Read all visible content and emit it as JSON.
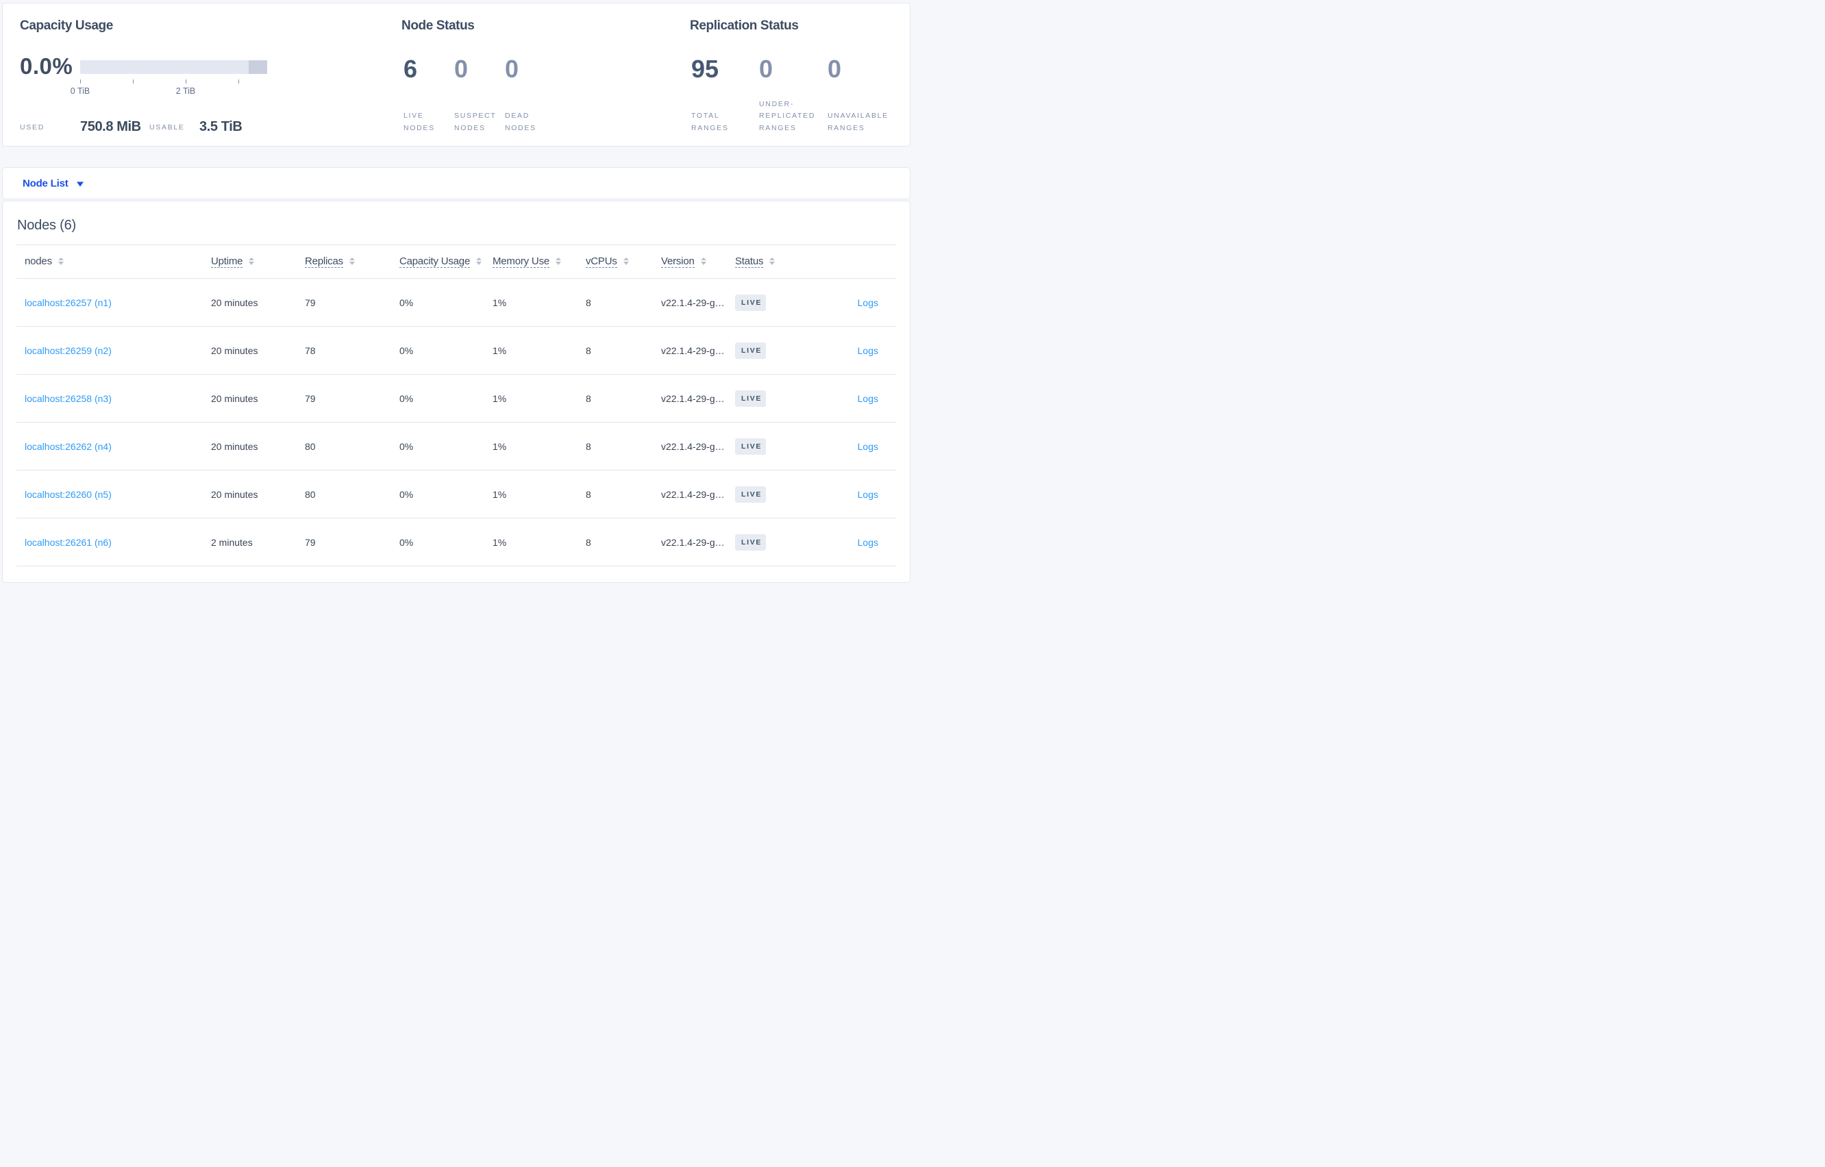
{
  "colors": {
    "page_background": "#f5f7fa",
    "card_background": "#ffffff",
    "heading_text": "#3e4c63",
    "primary_blue": "#1b4fe8",
    "link_blue": "#2e9bf7",
    "muted_label": "#8290a9",
    "bar_light": "#e3e7f1",
    "bar_dark": "#c9cfdf",
    "badge_background": "#e4e9f1"
  },
  "capacity_panel": {
    "title": "Capacity Usage",
    "percent": "0.0%",
    "tick_label_0": "0 TiB",
    "tick_label_2": "2 TiB",
    "used_label": "USED",
    "used_value": "750.8 MiB",
    "usable_label": "USABLE",
    "usable_value": "3.5 TiB"
  },
  "node_status_panel": {
    "title": "Node Status",
    "stats": [
      {
        "value": "6",
        "label": "LIVE\nNODES",
        "muted": false
      },
      {
        "value": "0",
        "label": "SUSPECT\nNODES",
        "muted": true
      },
      {
        "value": "0",
        "label": "DEAD\nNODES",
        "muted": true
      }
    ]
  },
  "replication_panel": {
    "title": "Replication Status",
    "stats": [
      {
        "value": "95",
        "label": "TOTAL\nRANGES",
        "muted": false
      },
      {
        "value": "0",
        "label": "UNDER-\nREPLICATED\nRANGES",
        "muted": true
      },
      {
        "value": "0",
        "label": "UNAVAILABLE\nRANGES",
        "muted": true
      }
    ]
  },
  "node_list_dropdown": {
    "label": "Node List"
  },
  "nodes_table": {
    "title": "Nodes (6)",
    "columns": [
      {
        "label": "nodes",
        "dashed": false
      },
      {
        "label": "Uptime",
        "dashed": true
      },
      {
        "label": "Replicas",
        "dashed": true
      },
      {
        "label": "Capacity Usage",
        "dashed": true
      },
      {
        "label": "Memory Use",
        "dashed": true
      },
      {
        "label": "vCPUs",
        "dashed": true
      },
      {
        "label": "Version",
        "dashed": true
      },
      {
        "label": "Status",
        "dashed": true
      }
    ],
    "rows": [
      {
        "node": "localhost:26257 (n1)",
        "uptime": "20 minutes",
        "replicas": "79",
        "capacity": "0%",
        "memory": "1%",
        "vcpus": "8",
        "version": "v22.1.4-29-g…",
        "status": "LIVE",
        "logs": "Logs"
      },
      {
        "node": "localhost:26259 (n2)",
        "uptime": "20 minutes",
        "replicas": "78",
        "capacity": "0%",
        "memory": "1%",
        "vcpus": "8",
        "version": "v22.1.4-29-g…",
        "status": "LIVE",
        "logs": "Logs"
      },
      {
        "node": "localhost:26258 (n3)",
        "uptime": "20 minutes",
        "replicas": "79",
        "capacity": "0%",
        "memory": "1%",
        "vcpus": "8",
        "version": "v22.1.4-29-g…",
        "status": "LIVE",
        "logs": "Logs"
      },
      {
        "node": "localhost:26262 (n4)",
        "uptime": "20 minutes",
        "replicas": "80",
        "capacity": "0%",
        "memory": "1%",
        "vcpus": "8",
        "version": "v22.1.4-29-g…",
        "status": "LIVE",
        "logs": "Logs"
      },
      {
        "node": "localhost:26260 (n5)",
        "uptime": "20 minutes",
        "replicas": "80",
        "capacity": "0%",
        "memory": "1%",
        "vcpus": "8",
        "version": "v22.1.4-29-g…",
        "status": "LIVE",
        "logs": "Logs"
      },
      {
        "node": "localhost:26261 (n6)",
        "uptime": "2 minutes",
        "replicas": "79",
        "capacity": "0%",
        "memory": "1%",
        "vcpus": "8",
        "version": "v22.1.4-29-g…",
        "status": "LIVE",
        "logs": "Logs"
      }
    ]
  }
}
